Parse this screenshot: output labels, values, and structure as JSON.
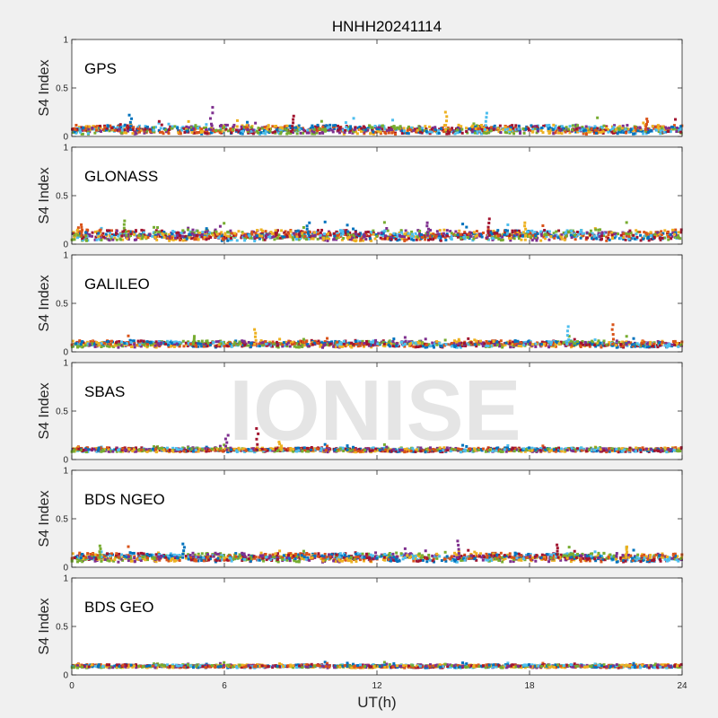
{
  "chart_data": {
    "type": "scatter",
    "title": "HNHH20241114",
    "xlabel": "UT(h)",
    "ylabel": "S4 Index",
    "xlim": [
      0,
      24
    ],
    "ylim": [
      0,
      1
    ],
    "x_ticks": [
      "0",
      "6",
      "12",
      "18",
      "24"
    ],
    "y_ticks": [
      "0",
      "0.5",
      "1"
    ],
    "watermark": "IONISE",
    "series_colors": [
      "#0072BD",
      "#D95319",
      "#EDB120",
      "#7E2F8E",
      "#77AC30",
      "#4DBEEE",
      "#A2142F"
    ],
    "panels": [
      {
        "name": "GPS",
        "baseline": 0.07,
        "spread": 0.04,
        "spikes": [
          [
            2.3,
            0.22
          ],
          [
            5.5,
            0.3
          ],
          [
            8.7,
            0.21
          ],
          [
            14.7,
            0.25
          ],
          [
            16.3,
            0.24
          ],
          [
            22.6,
            0.18
          ]
        ]
      },
      {
        "name": "GLONASS",
        "baseline": 0.09,
        "spread": 0.05,
        "spikes": [
          [
            0.4,
            0.2
          ],
          [
            2.1,
            0.24
          ],
          [
            9.3,
            0.22
          ],
          [
            14.0,
            0.22
          ],
          [
            16.4,
            0.26
          ],
          [
            17.8,
            0.22
          ]
        ]
      },
      {
        "name": "GALILEO",
        "baseline": 0.08,
        "spread": 0.03,
        "spikes": [
          [
            7.2,
            0.23
          ],
          [
            19.5,
            0.26
          ],
          [
            21.3,
            0.28
          ],
          [
            4.8,
            0.16
          ]
        ]
      },
      {
        "name": "SBAS",
        "baseline": 0.1,
        "spread": 0.02,
        "spikes": [
          [
            6.1,
            0.25
          ],
          [
            7.3,
            0.32
          ],
          [
            8.2,
            0.18
          ]
        ]
      },
      {
        "name": "BDS NGEO",
        "baseline": 0.1,
        "spread": 0.04,
        "spikes": [
          [
            1.1,
            0.22
          ],
          [
            4.4,
            0.24
          ],
          [
            15.2,
            0.27
          ],
          [
            19.1,
            0.23
          ],
          [
            21.8,
            0.21
          ]
        ]
      },
      {
        "name": "BDS GEO",
        "baseline": 0.09,
        "spread": 0.015,
        "spikes": []
      }
    ]
  }
}
